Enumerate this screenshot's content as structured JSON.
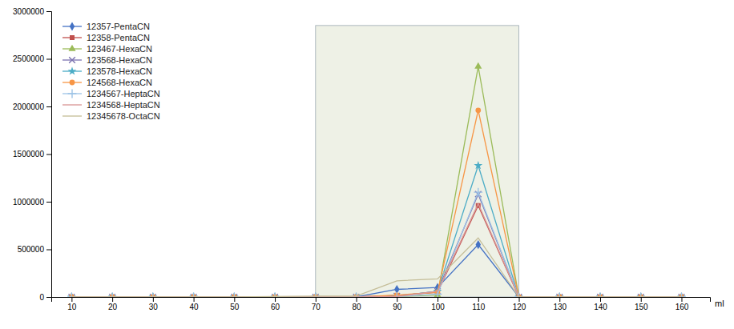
{
  "chart_data": {
    "type": "line",
    "x": [
      10,
      20,
      30,
      40,
      50,
      60,
      70,
      80,
      90,
      100,
      110,
      120,
      130,
      140,
      150,
      160
    ],
    "series": [
      {
        "name": "12357-PentaCN",
        "color": "#4472C4",
        "marker": "diamond",
        "values": [
          0,
          0,
          0,
          0,
          0,
          0,
          0,
          0,
          80000,
          100000,
          550000,
          0,
          0,
          0,
          0,
          0
        ]
      },
      {
        "name": "12358-PentaCN",
        "color": "#C0504D",
        "marker": "square",
        "values": [
          0,
          0,
          0,
          0,
          0,
          0,
          0,
          0,
          15000,
          50000,
          960000,
          0,
          0,
          0,
          0,
          0
        ]
      },
      {
        "name": "123467-HexaCN",
        "color": "#9BBB59",
        "marker": "triangle",
        "values": [
          0,
          0,
          0,
          0,
          0,
          0,
          0,
          0,
          5000,
          20000,
          2420000,
          0,
          0,
          0,
          0,
          0
        ]
      },
      {
        "name": "123568-HexaCN",
        "color": "#7B72B0",
        "marker": "x",
        "values": [
          0,
          0,
          0,
          0,
          0,
          0,
          0,
          0,
          10000,
          60000,
          1080000,
          0,
          0,
          0,
          0,
          0
        ]
      },
      {
        "name": "123578-HexaCN",
        "color": "#4BACC6",
        "marker": "star",
        "values": [
          0,
          0,
          0,
          0,
          0,
          0,
          0,
          0,
          10000,
          60000,
          1380000,
          0,
          0,
          0,
          0,
          0
        ]
      },
      {
        "name": "124568-HexaCN",
        "color": "#F79646",
        "marker": "circle",
        "values": [
          0,
          0,
          0,
          0,
          0,
          0,
          0,
          0,
          20000,
          50000,
          1960000,
          0,
          0,
          0,
          0,
          0
        ]
      },
      {
        "name": "1234567-HeptaCN",
        "color": "#9DC3E6",
        "marker": "plus",
        "values": [
          0,
          0,
          0,
          0,
          0,
          0,
          0,
          0,
          5000,
          30000,
          1100000,
          0,
          0,
          0,
          0,
          0
        ]
      },
      {
        "name": "1234568-HeptaCN",
        "color": "#D99594",
        "marker": "none",
        "values": [
          0,
          0,
          0,
          0,
          0,
          0,
          0,
          0,
          5000,
          60000,
          980000,
          0,
          0,
          0,
          0,
          0
        ]
      },
      {
        "name": "12345678-OctaCN",
        "color": "#C4BD97",
        "marker": "none",
        "values": [
          0,
          0,
          0,
          0,
          0,
          5000,
          10000,
          10000,
          170000,
          190000,
          620000,
          0,
          0,
          0,
          0,
          0
        ]
      }
    ],
    "shaded_region": {
      "x_start": 70,
      "x_end": 120,
      "y_end": 2850000,
      "color": "#EEF1E6"
    },
    "xlabel": "ml",
    "xlim": [
      5,
      167
    ],
    "ylim": [
      0,
      3000000
    ],
    "xticks": [
      10,
      20,
      30,
      40,
      50,
      60,
      70,
      80,
      90,
      100,
      110,
      120,
      130,
      140,
      150,
      160
    ],
    "yticks": [
      0,
      500000,
      1000000,
      1500000,
      2000000,
      2500000,
      3000000
    ],
    "legend": "upper left",
    "grid": false
  }
}
